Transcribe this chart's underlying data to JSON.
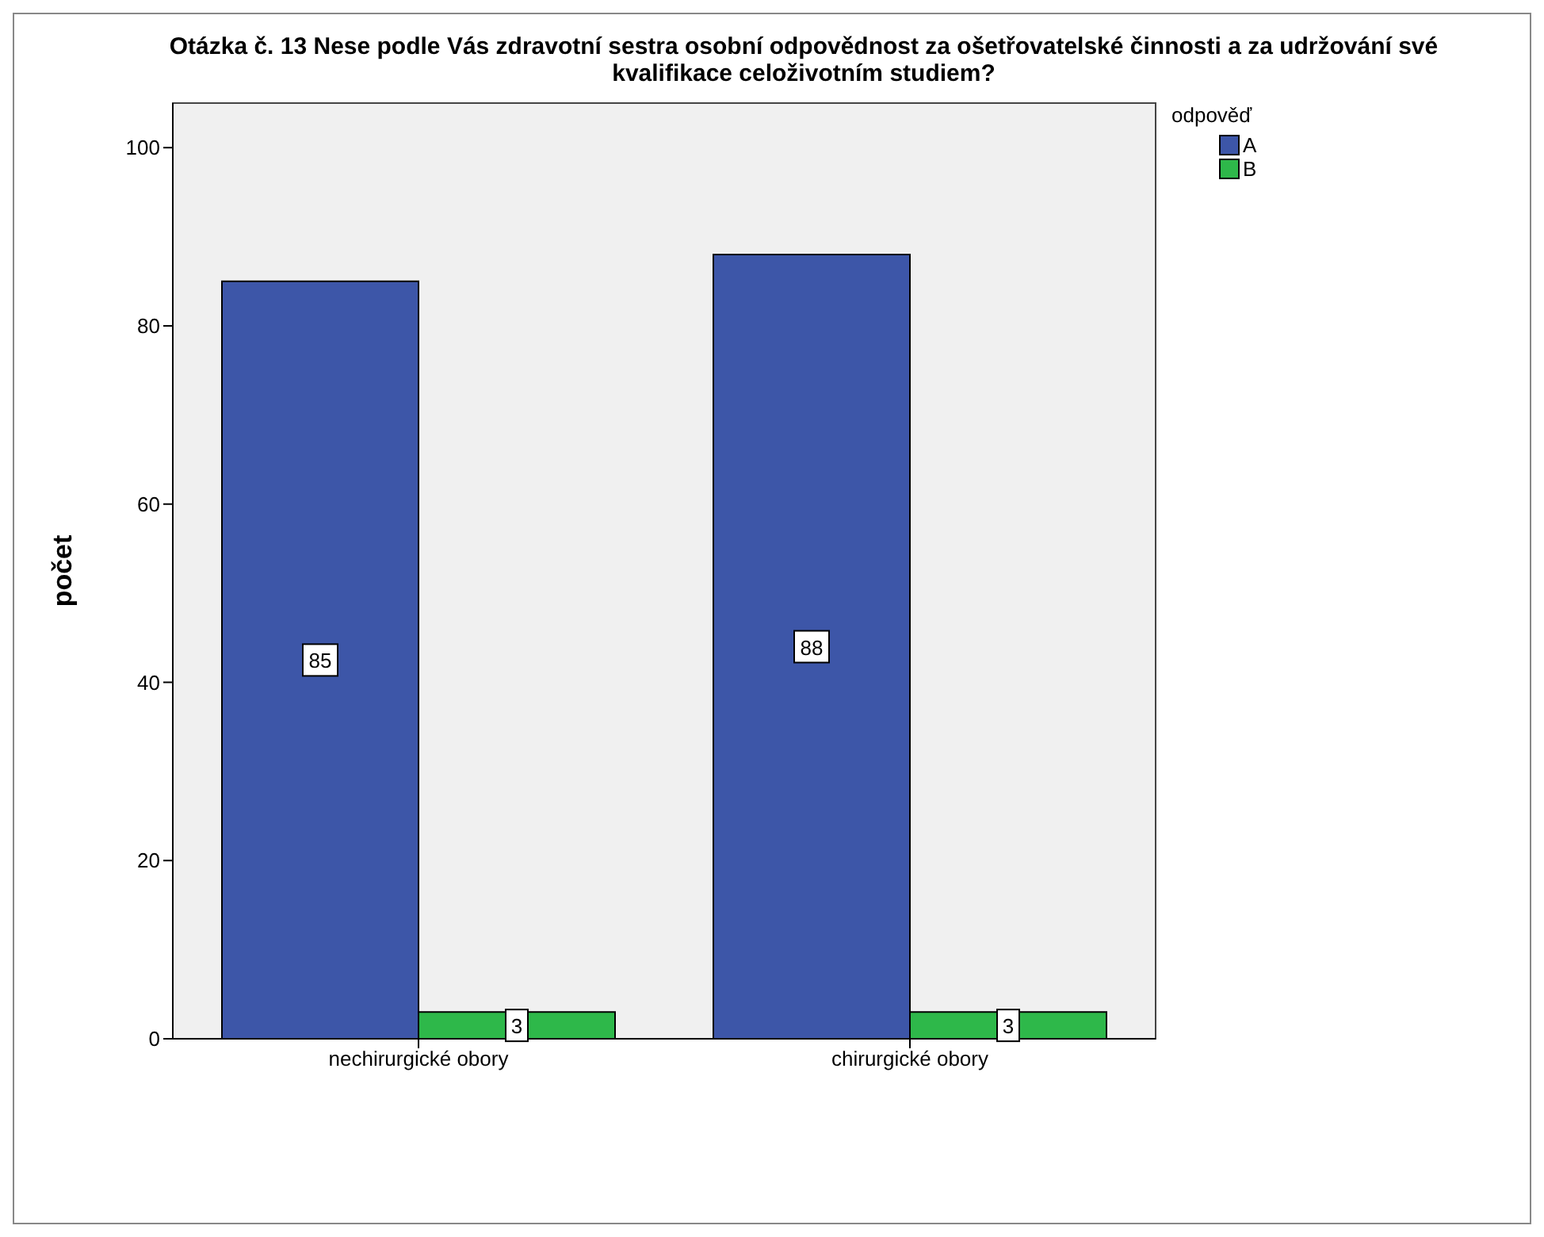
{
  "chart_data": {
    "type": "bar",
    "title": "Otázka č. 13 Nese podle Vás zdravotní sestra osobní odpovědnost za ošetřovatelské činnosti a za udržování své kvalifikace celoživotním studiem?",
    "categories": [
      "nechirurgické obory",
      "chirurgické obory"
    ],
    "ylabel": "počet",
    "legend_title": "odpověď",
    "series": [
      {
        "name": "A",
        "color": "#3d56a8",
        "values": [
          85,
          88
        ]
      },
      {
        "name": "B",
        "color": "#2eb84a",
        "values": [
          3,
          3
        ]
      }
    ],
    "ylim": [
      0,
      105
    ],
    "yticks": [
      0,
      20,
      40,
      60,
      80,
      100
    ],
    "data_labels": true,
    "legend": "top right"
  }
}
